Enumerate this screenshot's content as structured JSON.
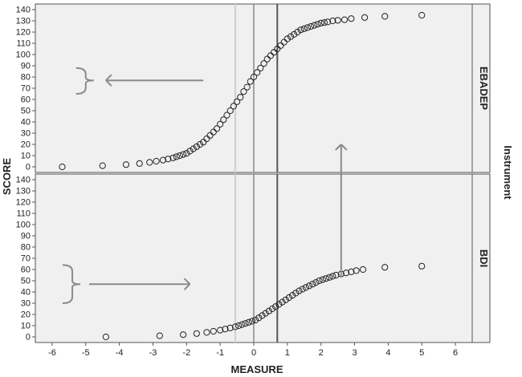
{
  "chart_data": {
    "type": "scatter",
    "xlabel": "MEASURE",
    "ylabel": "SCORE",
    "facet_label": "Instrument",
    "xlim": [
      -6.5,
      6.5
    ],
    "ylim": [
      -5,
      145
    ],
    "x_ticks": [
      -6,
      -5,
      -4,
      -3,
      -2,
      -1,
      0,
      1,
      2,
      3,
      4,
      5,
      6
    ],
    "y_ticks": [
      0,
      10,
      20,
      30,
      40,
      50,
      60,
      70,
      80,
      90,
      100,
      110,
      120,
      130,
      140
    ],
    "reference_lines_x": [
      -0.55,
      0,
      0.7
    ],
    "panels": [
      {
        "name": "EBADEP",
        "points": [
          [
            -5.7,
            0
          ],
          [
            -4.5,
            1
          ],
          [
            -3.8,
            2
          ],
          [
            -3.4,
            3
          ],
          [
            -3.1,
            4
          ],
          [
            -2.9,
            5
          ],
          [
            -2.7,
            6
          ],
          [
            -2.55,
            7
          ],
          [
            -2.4,
            8
          ],
          [
            -2.3,
            9
          ],
          [
            -2.2,
            10
          ],
          [
            -2.1,
            11
          ],
          [
            -2.0,
            12
          ],
          [
            -1.9,
            14
          ],
          [
            -1.8,
            16
          ],
          [
            -1.7,
            18
          ],
          [
            -1.6,
            20
          ],
          [
            -1.5,
            22
          ],
          [
            -1.4,
            25
          ],
          [
            -1.3,
            28
          ],
          [
            -1.2,
            31
          ],
          [
            -1.1,
            34
          ],
          [
            -1.0,
            38
          ],
          [
            -0.9,
            42
          ],
          [
            -0.8,
            46
          ],
          [
            -0.7,
            50
          ],
          [
            -0.6,
            54
          ],
          [
            -0.5,
            58
          ],
          [
            -0.4,
            62
          ],
          [
            -0.3,
            67
          ],
          [
            -0.2,
            71
          ],
          [
            -0.1,
            76
          ],
          [
            0,
            80
          ],
          [
            0.1,
            84
          ],
          [
            0.2,
            88
          ],
          [
            0.3,
            92
          ],
          [
            0.4,
            96
          ],
          [
            0.5,
            99
          ],
          [
            0.6,
            102
          ],
          [
            0.7,
            105
          ],
          [
            0.8,
            108
          ],
          [
            0.9,
            111
          ],
          [
            1.0,
            114
          ],
          [
            1.1,
            116
          ],
          [
            1.2,
            118
          ],
          [
            1.3,
            120
          ],
          [
            1.4,
            122
          ],
          [
            1.5,
            123
          ],
          [
            1.6,
            124
          ],
          [
            1.7,
            125
          ],
          [
            1.8,
            126
          ],
          [
            1.9,
            127
          ],
          [
            2.0,
            128
          ],
          [
            2.1,
            128.5
          ],
          [
            2.2,
            129
          ],
          [
            2.35,
            130
          ],
          [
            2.5,
            130.5
          ],
          [
            2.7,
            131
          ],
          [
            2.9,
            132
          ],
          [
            3.3,
            133
          ],
          [
            3.9,
            134
          ],
          [
            5.0,
            135
          ]
        ]
      },
      {
        "name": "BDI",
        "points": [
          [
            -4.4,
            0
          ],
          [
            -2.8,
            1
          ],
          [
            -2.1,
            2
          ],
          [
            -1.7,
            3
          ],
          [
            -1.4,
            4
          ],
          [
            -1.2,
            5
          ],
          [
            -1.0,
            6
          ],
          [
            -0.85,
            7
          ],
          [
            -0.7,
            8
          ],
          [
            -0.55,
            9
          ],
          [
            -0.45,
            10
          ],
          [
            -0.35,
            11
          ],
          [
            -0.25,
            12
          ],
          [
            -0.15,
            13
          ],
          [
            -0.05,
            14
          ],
          [
            0.05,
            15
          ],
          [
            0.15,
            17
          ],
          [
            0.25,
            19
          ],
          [
            0.35,
            21
          ],
          [
            0.45,
            23
          ],
          [
            0.55,
            25
          ],
          [
            0.65,
            27
          ],
          [
            0.75,
            29
          ],
          [
            0.85,
            31
          ],
          [
            0.95,
            33
          ],
          [
            1.05,
            35
          ],
          [
            1.15,
            37
          ],
          [
            1.25,
            39
          ],
          [
            1.35,
            41
          ],
          [
            1.45,
            42.5
          ],
          [
            1.55,
            44
          ],
          [
            1.65,
            45.5
          ],
          [
            1.75,
            47
          ],
          [
            1.85,
            48.5
          ],
          [
            1.95,
            50
          ],
          [
            2.05,
            51
          ],
          [
            2.15,
            52
          ],
          [
            2.25,
            53
          ],
          [
            2.35,
            54
          ],
          [
            2.45,
            55
          ],
          [
            2.6,
            56
          ],
          [
            2.75,
            57
          ],
          [
            2.9,
            58
          ],
          [
            3.05,
            59
          ],
          [
            3.25,
            60
          ],
          [
            3.9,
            62
          ],
          [
            5.0,
            63
          ]
        ]
      }
    ]
  }
}
